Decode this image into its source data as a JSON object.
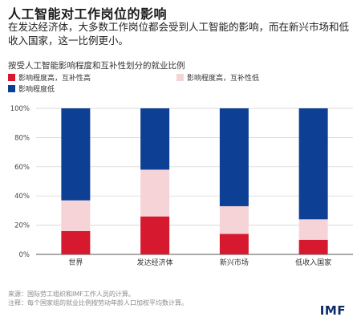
{
  "title": "人工智能对工作岗位的影响",
  "subtitle": "在发达经济体，大多数工作岗位都会受到人工智能的影响，而在新兴市场和低收入国家，这一比例更小。",
  "notes": {
    "source": "来源：国际劳工组织和IMF工作人员的计算。",
    "note": "注释：每个国家组的就业比例按劳动年龄人口加权平均数计算。"
  },
  "logo": "IMF",
  "chart_data": {
    "type": "bar",
    "stacked": true,
    "title": "按受人工智能影响程度和互补性划分的就业比例",
    "categories": [
      "世界",
      "发达经济体",
      "新兴市场",
      "低收入国家"
    ],
    "series": [
      {
        "name": "影响程度高，互补性高",
        "color": "#d7192f",
        "values": [
          16,
          26,
          14,
          10
        ]
      },
      {
        "name": "影响程度高，互补性低",
        "color": "#f6d3d6",
        "values": [
          21,
          32,
          19,
          14
        ]
      },
      {
        "name": "影响程度低",
        "color": "#0d3f94",
        "values": [
          63,
          42,
          67,
          76
        ]
      }
    ],
    "yticks": [
      "0%",
      "20%",
      "40%",
      "60%",
      "80%",
      "100%"
    ],
    "ylim": [
      0,
      100
    ],
    "grid": true,
    "legend": "top"
  }
}
